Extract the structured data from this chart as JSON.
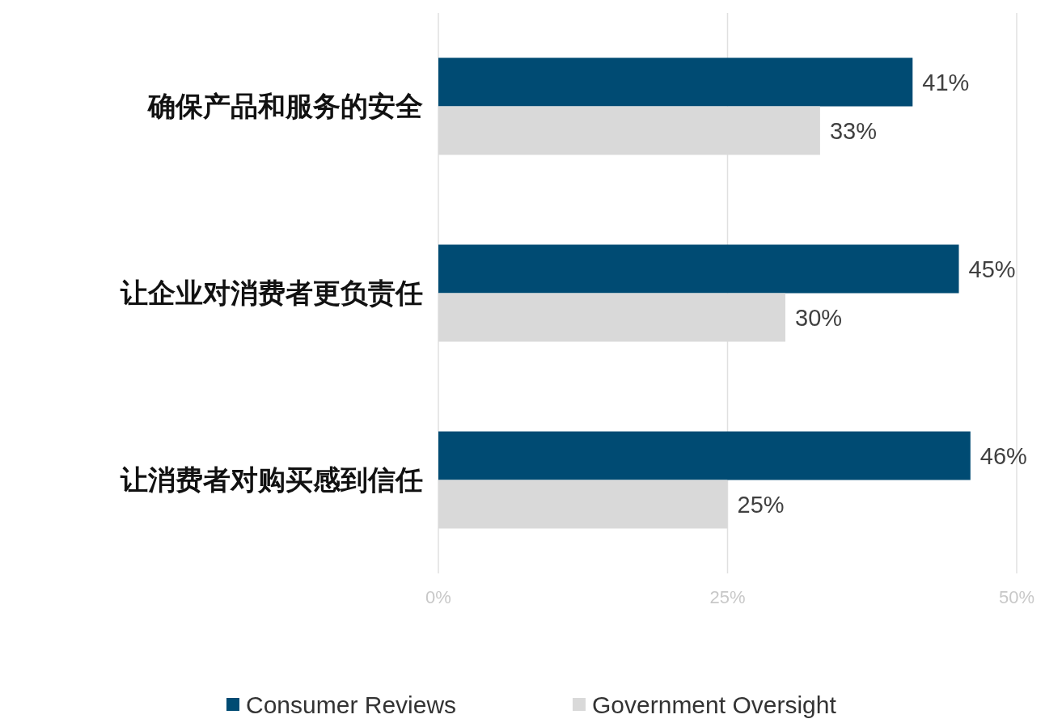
{
  "chart_data": {
    "type": "bar",
    "orientation": "horizontal",
    "categories": [
      "确保产品和服务的安全",
      "让企业对消费者更负责任",
      "让消费者对购买感到信任"
    ],
    "series": [
      {
        "name": "Consumer Reviews",
        "color": "#004b73",
        "values": [
          41,
          45,
          46
        ],
        "value_labels": [
          "41%",
          "45%",
          "46%"
        ]
      },
      {
        "name": "Government Oversight",
        "color": "#d9d9d9",
        "values": [
          33,
          30,
          25
        ],
        "value_labels": [
          "33%",
          "30%",
          "25%"
        ]
      }
    ],
    "xlim": [
      0,
      50
    ],
    "xticks": [
      {
        "value": 0,
        "label": "0%"
      },
      {
        "value": 25,
        "label": "25%"
      },
      {
        "value": 50,
        "label": "50%"
      }
    ],
    "grid": "x",
    "legend": "bottom"
  }
}
